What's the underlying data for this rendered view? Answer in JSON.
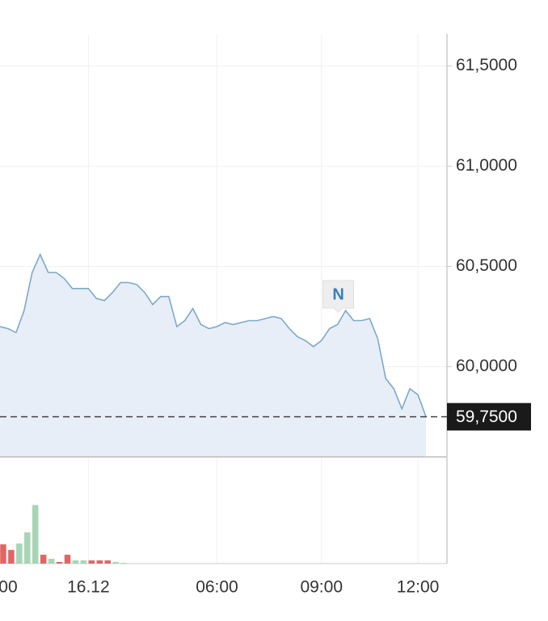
{
  "chart_data": {
    "type": "line",
    "categories": [
      null,
      "00",
      null,
      null,
      null,
      null,
      null,
      null,
      null,
      null,
      null,
      "16.12",
      null,
      null,
      null,
      null,
      null,
      null,
      null,
      null,
      null,
      null,
      null,
      null,
      null,
      null,
      null,
      "06:00",
      null,
      null,
      null,
      null,
      null,
      null,
      null,
      null,
      null,
      null,
      null,
      null,
      "09:00",
      null,
      null,
      null,
      null,
      null,
      null,
      null,
      null,
      null,
      null,
      null,
      "12:00",
      null
    ],
    "values": [
      60.2,
      60.19,
      60.17,
      60.28,
      60.47,
      60.56,
      60.47,
      60.47,
      60.44,
      60.39,
      60.39,
      60.39,
      60.34,
      60.33,
      60.37,
      60.42,
      60.42,
      60.41,
      60.37,
      60.31,
      60.35,
      60.35,
      60.2,
      60.23,
      60.29,
      60.21,
      60.19,
      60.2,
      60.22,
      60.21,
      60.22,
      60.23,
      60.23,
      60.24,
      60.25,
      60.24,
      60.19,
      60.15,
      60.13,
      60.1,
      60.13,
      60.19,
      60.21,
      60.28,
      60.23,
      60.23,
      60.24,
      60.14,
      59.94,
      59.89,
      59.79,
      59.89,
      59.86,
      59.75
    ],
    "color": "#7aaacb",
    "area_color": "#e8eef7",
    "ylim": [
      59.55,
      61.66
    ],
    "yticks": [
      {
        "value": 61.5,
        "label": "61,5000"
      },
      {
        "value": 61.0,
        "label": "61,0000"
      },
      {
        "value": 60.5,
        "label": "60,5000"
      },
      {
        "value": 60.0,
        "label": "60,0000"
      }
    ],
    "current": {
      "value": 59.75,
      "label": "59,7500"
    },
    "annotation": {
      "index": 43,
      "label": "N"
    },
    "grid": true,
    "volume": {
      "values": [
        24,
        17,
        25,
        39,
        73,
        11,
        6,
        2,
        11,
        4,
        4,
        4,
        4,
        4,
        2,
        1
      ],
      "colors": [
        "#e06666",
        "#e06666",
        "#a8d5b5",
        "#a8d5b5",
        "#a8d5b5",
        "#e06666",
        "#a8d5b5",
        "#e06666",
        "#e06666",
        "#a8d5b5",
        "#a8d5b5",
        "#e06666",
        "#e06666",
        "#e06666",
        "#a8d5b5",
        "#a8d5b5"
      ],
      "ylim": [
        0,
        130
      ]
    }
  }
}
